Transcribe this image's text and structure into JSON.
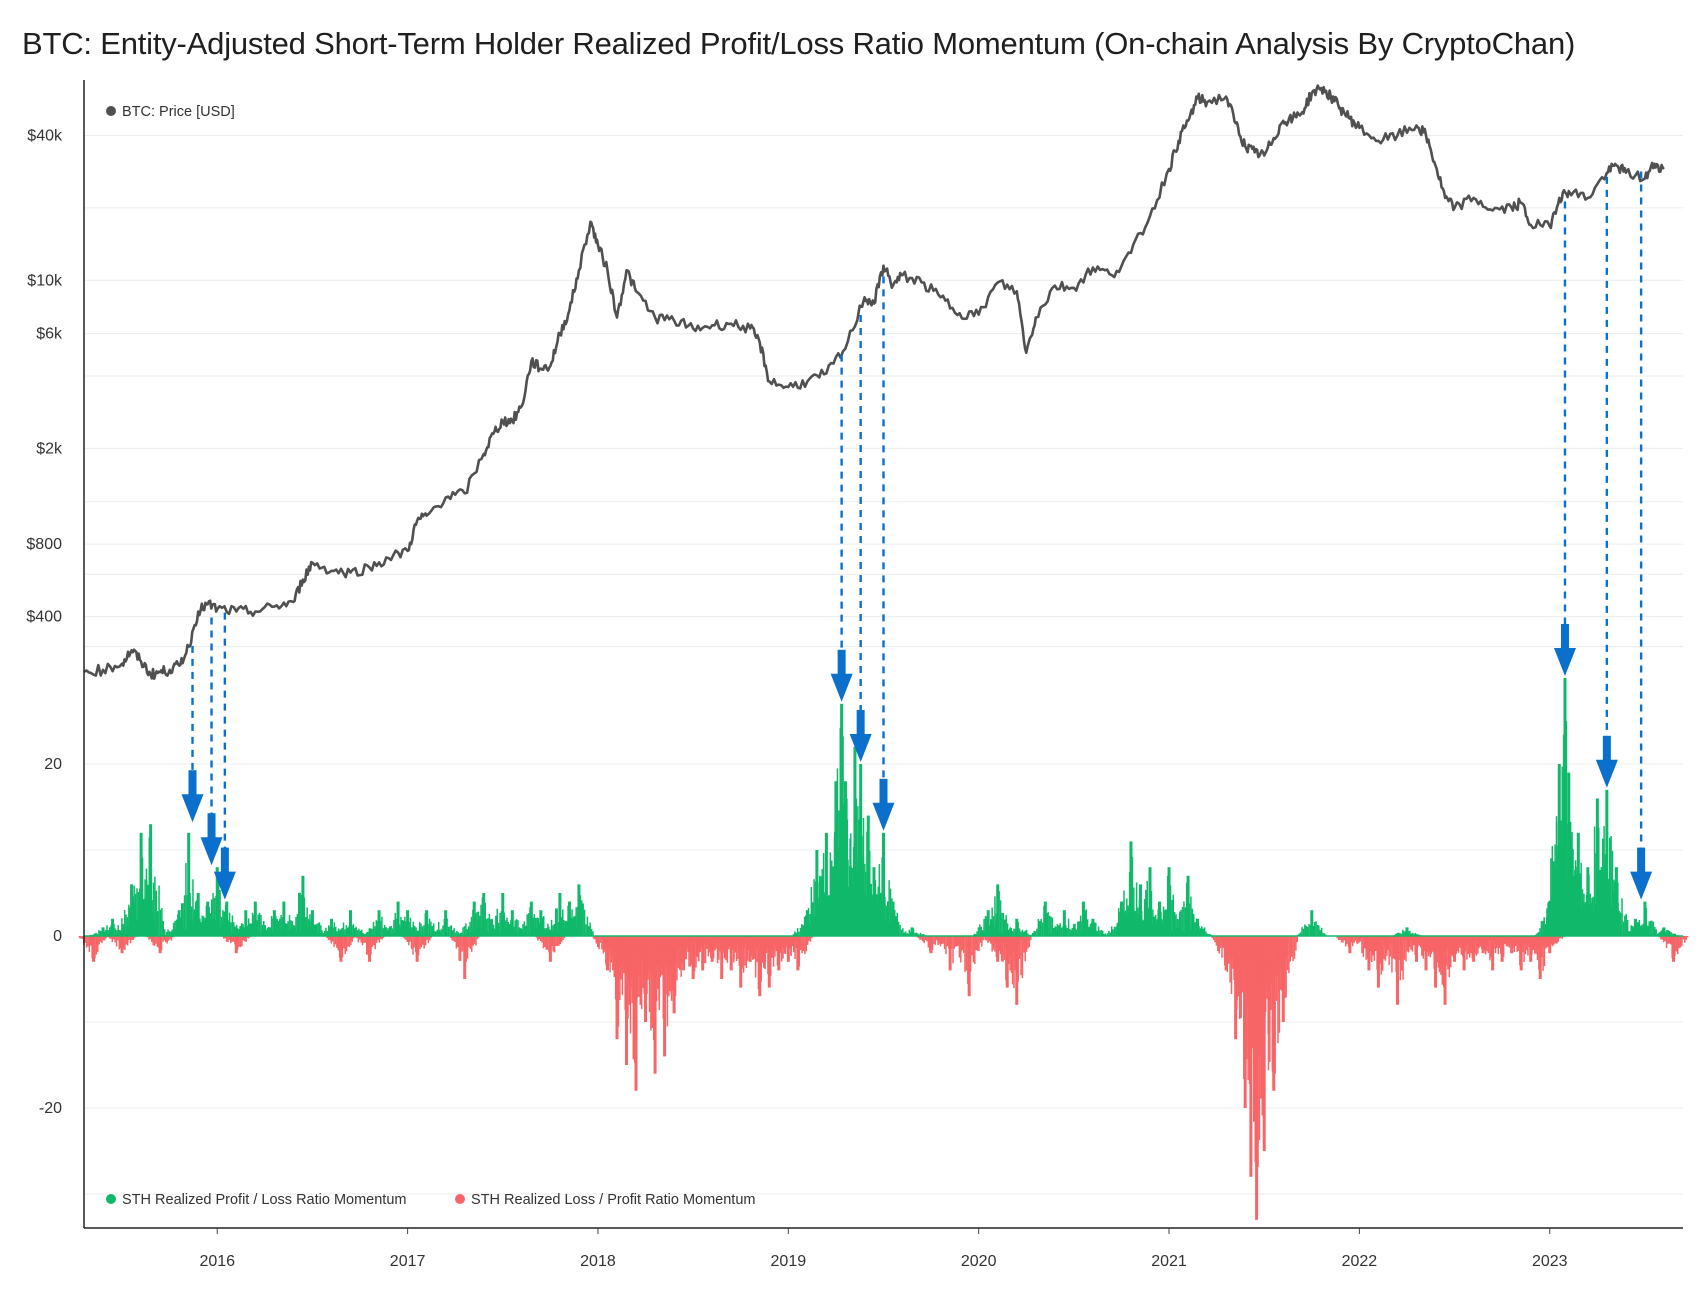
{
  "title": "BTC: Entity-Adjusted Short-Term Holder Realized Profit/Loss Ratio Momentum (On-chain Analysis By CryptoChan)",
  "chart_data": [
    {
      "type": "line",
      "panel": "top",
      "scale": "log",
      "legend": "BTC: Price [USD]",
      "legend_placement": "top-left",
      "y_ticks": [
        {
          "value": 40000,
          "label": "$40k"
        },
        {
          "value": 10000,
          "label": "$10k"
        },
        {
          "value": 6000,
          "label": "$6k"
        },
        {
          "value": 2000,
          "label": "$2k"
        },
        {
          "value": 800,
          "label": "$800"
        },
        {
          "value": 400,
          "label": "$400"
        }
      ],
      "ylim": [
        180,
        68000
      ],
      "series": [
        {
          "name": "BTC: Price [USD]",
          "color": "#505050",
          "x": [
            2015.3,
            2015.4,
            2015.5,
            2015.55,
            2015.6,
            2015.65,
            2015.7,
            2015.75,
            2015.8,
            2015.85,
            2015.9,
            2015.95,
            2016.0,
            2016.1,
            2016.2,
            2016.3,
            2016.4,
            2016.45,
            2016.5,
            2016.6,
            2016.7,
            2016.8,
            2016.9,
            2017.0,
            2017.05,
            2017.1,
            2017.2,
            2017.3,
            2017.4,
            2017.45,
            2017.5,
            2017.55,
            2017.6,
            2017.65,
            2017.7,
            2017.75,
            2017.8,
            2017.85,
            2017.9,
            2017.96,
            2018.0,
            2018.05,
            2018.1,
            2018.15,
            2018.2,
            2018.3,
            2018.4,
            2018.5,
            2018.6,
            2018.7,
            2018.8,
            2018.85,
            2018.9,
            2019.0,
            2019.1,
            2019.2,
            2019.3,
            2019.4,
            2019.45,
            2019.5,
            2019.55,
            2019.6,
            2019.7,
            2019.8,
            2019.9,
            2020.0,
            2020.1,
            2020.2,
            2020.25,
            2020.3,
            2020.4,
            2020.5,
            2020.6,
            2020.7,
            2020.8,
            2020.9,
            2021.0,
            2021.05,
            2021.1,
            2021.15,
            2021.2,
            2021.3,
            2021.35,
            2021.4,
            2021.45,
            2021.5,
            2021.55,
            2021.6,
            2021.65,
            2021.7,
            2021.75,
            2021.8,
            2021.85,
            2021.9,
            2021.95,
            2022.0,
            2022.1,
            2022.2,
            2022.3,
            2022.35,
            2022.4,
            2022.45,
            2022.5,
            2022.6,
            2022.7,
            2022.8,
            2022.85,
            2022.9,
            2023.0,
            2023.05,
            2023.1,
            2023.2,
            2023.3,
            2023.35,
            2023.4,
            2023.5,
            2023.55,
            2023.6
          ],
          "values": [
            236,
            240,
            255,
            290,
            260,
            230,
            235,
            240,
            250,
            300,
            420,
            450,
            430,
            420,
            420,
            440,
            460,
            570,
            670,
            620,
            610,
            640,
            700,
            750,
            1000,
            1050,
            1250,
            1300,
            1900,
            2300,
            2600,
            2600,
            3000,
            4600,
            4300,
            4400,
            6000,
            7500,
            11000,
            17500,
            14000,
            11000,
            7000,
            11000,
            9000,
            7000,
            6800,
            6300,
            6500,
            6600,
            6300,
            5500,
            3800,
            3600,
            3800,
            4100,
            5200,
            8500,
            8000,
            11500,
            9500,
            10500,
            9800,
            8500,
            7300,
            7200,
            9800,
            9000,
            5000,
            7000,
            9500,
            9300,
            11300,
            10500,
            13000,
            18500,
            29000,
            38000,
            46000,
            57000,
            55000,
            58000,
            45000,
            36000,
            34000,
            33000,
            39000,
            46000,
            47000,
            50000,
            60000,
            63000,
            58000,
            52000,
            47000,
            43000,
            38000,
            40000,
            44000,
            40000,
            30000,
            22000,
            20000,
            22000,
            19500,
            20000,
            21000,
            17000,
            16800,
            22000,
            23500,
            22000,
            28000,
            30000,
            28000,
            26500,
            30500,
            29000
          ],
          "xlim": [
            2015.3,
            2023.7
          ]
        }
      ]
    },
    {
      "type": "bar",
      "panel": "bottom",
      "y_ticks": [
        {
          "value": 20,
          "label": "20"
        },
        {
          "value": 0,
          "label": "0"
        },
        {
          "value": -20,
          "label": "-20"
        }
      ],
      "ylim": [
        -34,
        30
      ],
      "x_ticks": [
        "2016",
        "2017",
        "2018",
        "2019",
        "2020",
        "2021",
        "2022",
        "2023"
      ],
      "legend_placement": "bottom-left",
      "series": [
        {
          "name": "STH Realized Profit / Loss Ratio Momentum",
          "color": "#10b96a",
          "x": [
            2015.4,
            2015.45,
            2015.55,
            2015.6,
            2015.65,
            2015.8,
            2015.85,
            2015.9,
            2015.95,
            2016.0,
            2016.05,
            2016.15,
            2016.2,
            2016.3,
            2016.35,
            2016.45,
            2016.5,
            2016.6,
            2016.7,
            2016.85,
            2016.95,
            2017.0,
            2017.1,
            2017.2,
            2017.35,
            2017.4,
            2017.5,
            2017.55,
            2017.65,
            2017.7,
            2017.8,
            2017.85,
            2017.9,
            2019.1,
            2019.15,
            2019.2,
            2019.25,
            2019.28,
            2019.3,
            2019.35,
            2019.38,
            2019.42,
            2019.45,
            2019.5,
            2019.55,
            2019.65,
            2020.05,
            2020.1,
            2020.2,
            2020.35,
            2020.45,
            2020.55,
            2020.6,
            2020.75,
            2020.8,
            2020.85,
            2020.9,
            2020.95,
            2021.0,
            2021.1,
            2021.15,
            2021.75,
            2022.25,
            2023.0,
            2023.05,
            2023.08,
            2023.1,
            2023.15,
            2023.2,
            2023.25,
            2023.3,
            2023.35,
            2023.45,
            2023.48,
            2023.5,
            2023.6
          ],
          "values": [
            1,
            2,
            6,
            12,
            13,
            3,
            12,
            5,
            4,
            8,
            4,
            3,
            4,
            3,
            4,
            7,
            3,
            2,
            3,
            3,
            4,
            3,
            3,
            3,
            4,
            5,
            5,
            3,
            4,
            3,
            5,
            4,
            6,
            3,
            10,
            12,
            18,
            27,
            18,
            22,
            20,
            14,
            8,
            12,
            4,
            1,
            3,
            6,
            2,
            4,
            3,
            4,
            2,
            4,
            11,
            6,
            8,
            4,
            8,
            7,
            2,
            3,
            1,
            4,
            20,
            30,
            19,
            12,
            8,
            16,
            17,
            8,
            2,
            1,
            4,
            1
          ],
          "zero_fill": true
        },
        {
          "name": "STH Realized Loss / Profit Ratio Momentum",
          "color": "#f76567",
          "x": [
            2015.35,
            2015.5,
            2015.7,
            2016.1,
            2016.65,
            2016.8,
            2017.05,
            2017.3,
            2017.75,
            2018.05,
            2018.1,
            2018.15,
            2018.2,
            2018.25,
            2018.3,
            2018.35,
            2018.4,
            2018.45,
            2018.5,
            2018.55,
            2018.6,
            2018.65,
            2018.7,
            2018.75,
            2018.8,
            2018.85,
            2018.9,
            2018.95,
            2019.0,
            2019.05,
            2019.75,
            2019.85,
            2019.95,
            2020.1,
            2020.15,
            2020.2,
            2021.3,
            2021.35,
            2021.4,
            2021.43,
            2021.46,
            2021.5,
            2021.55,
            2021.6,
            2021.95,
            2022.05,
            2022.1,
            2022.2,
            2022.3,
            2022.35,
            2022.4,
            2022.45,
            2022.5,
            2022.55,
            2022.6,
            2022.65,
            2022.7,
            2022.75,
            2022.8,
            2022.85,
            2022.9,
            2022.95,
            2023.0,
            2023.65
          ],
          "values": [
            -3,
            -2,
            -2,
            -2,
            -3,
            -3,
            -3,
            -5,
            -3,
            -4,
            -12,
            -15,
            -18,
            -10,
            -16,
            -14,
            -9,
            -4,
            -5,
            -4,
            -3,
            -5,
            -4,
            -6,
            -3,
            -7,
            -6,
            -4,
            -3,
            -4,
            -2,
            -4,
            -7,
            -3,
            -6,
            -8,
            -4,
            -12,
            -20,
            -28,
            -33,
            -25,
            -18,
            -10,
            -2,
            -4,
            -6,
            -8,
            -3,
            -4,
            -6,
            -8,
            -3,
            -4,
            -3,
            -2,
            -4,
            -3,
            -2,
            -4,
            -3,
            -5,
            -2,
            -3
          ]
        }
      ]
    }
  ],
  "arrows": [
    {
      "x": 2015.87,
      "y_price": 320,
      "y_value": 13
    },
    {
      "x": 2015.97,
      "y_price": 420,
      "y_value": 8
    },
    {
      "x": 2016.04,
      "y_price": 440,
      "y_value": 4
    },
    {
      "x": 2019.28,
      "y_price": 5200,
      "y_value": 27
    },
    {
      "x": 2019.38,
      "y_price": 7600,
      "y_value": 20
    },
    {
      "x": 2019.5,
      "y_price": 11000,
      "y_value": 12
    },
    {
      "x": 2023.08,
      "y_price": 22500,
      "y_value": 30
    },
    {
      "x": 2023.3,
      "y_price": 28500,
      "y_value": 17
    },
    {
      "x": 2023.48,
      "y_price": 30000,
      "y_value": 4
    }
  ],
  "arrow_color": "#0b6fcc"
}
